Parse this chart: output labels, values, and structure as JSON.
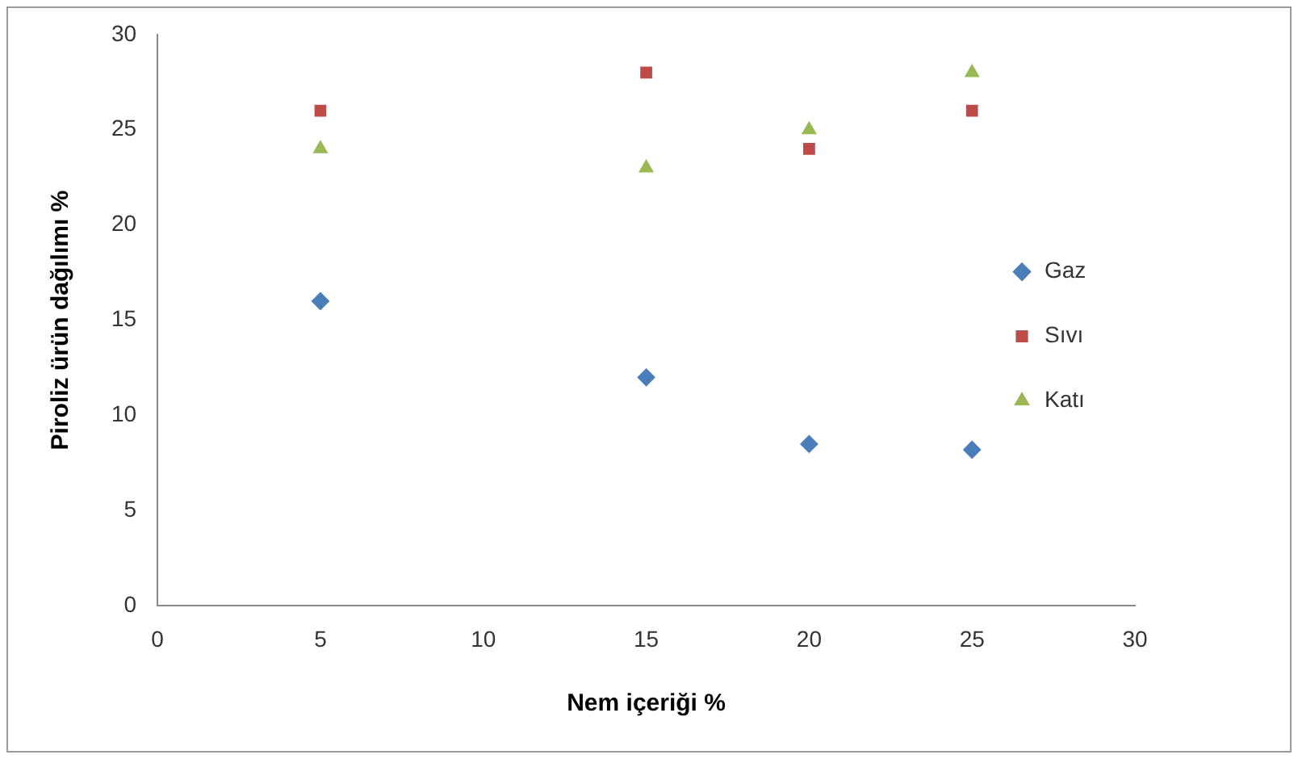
{
  "chart_data": {
    "type": "scatter",
    "xlabel": "Nem içeriği %",
    "ylabel": "Piroliz ürün dağılımı %",
    "x": [
      5,
      15,
      20,
      25
    ],
    "series": [
      {
        "name": "Gaz",
        "color": "#4a7ebb",
        "marker": "diamond",
        "values": [
          16,
          12,
          8.5,
          8.2
        ]
      },
      {
        "name": "Sıvı",
        "color": "#be4b48",
        "marker": "square",
        "values": [
          26,
          28,
          24,
          26
        ]
      },
      {
        "name": "Katı",
        "color": "#98b954",
        "marker": "triangle",
        "values": [
          24,
          23,
          25,
          28
        ]
      }
    ],
    "xlim": [
      0,
      30
    ],
    "xticks": [
      0,
      5,
      10,
      15,
      20,
      25,
      30
    ],
    "ylim": [
      0,
      30
    ],
    "yticks": [
      0,
      5,
      10,
      15,
      20,
      25,
      30
    ],
    "grid": false,
    "legend": "right"
  }
}
